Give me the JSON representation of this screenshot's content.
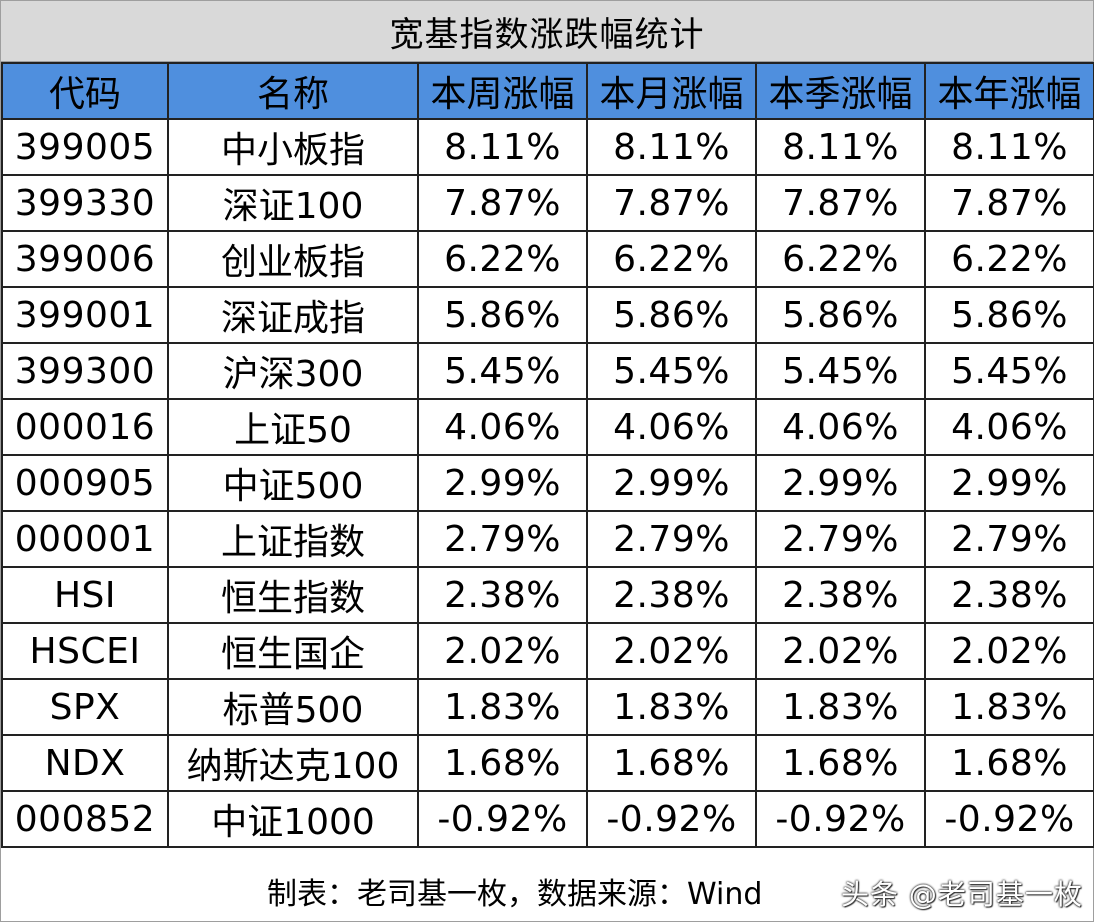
{
  "title": "宽基指数涨跌幅统计",
  "columns": [
    "代码",
    "名称",
    "本周涨幅",
    "本月涨幅",
    "本季涨幅",
    "本年涨幅"
  ],
  "rows": [
    {
      "code": "399005",
      "name": "中小板指",
      "week": "8.11%",
      "month": "8.11%",
      "quarter": "8.11%",
      "year": "8.11%",
      "trend": "up"
    },
    {
      "code": "399330",
      "name": "深证100",
      "week": "7.87%",
      "month": "7.87%",
      "quarter": "7.87%",
      "year": "7.87%",
      "trend": "up"
    },
    {
      "code": "399006",
      "name": "创业板指",
      "week": "6.22%",
      "month": "6.22%",
      "quarter": "6.22%",
      "year": "6.22%",
      "trend": "up"
    },
    {
      "code": "399001",
      "name": "深证成指",
      "week": "5.86%",
      "month": "5.86%",
      "quarter": "5.86%",
      "year": "5.86%",
      "trend": "up"
    },
    {
      "code": "399300",
      "name": "沪深300",
      "week": "5.45%",
      "month": "5.45%",
      "quarter": "5.45%",
      "year": "5.45%",
      "trend": "up"
    },
    {
      "code": "000016",
      "name": "上证50",
      "week": "4.06%",
      "month": "4.06%",
      "quarter": "4.06%",
      "year": "4.06%",
      "trend": "up"
    },
    {
      "code": "000905",
      "name": "中证500",
      "week": "2.99%",
      "month": "2.99%",
      "quarter": "2.99%",
      "year": "2.99%",
      "trend": "up"
    },
    {
      "code": "000001",
      "name": "上证指数",
      "week": "2.79%",
      "month": "2.79%",
      "quarter": "2.79%",
      "year": "2.79%",
      "trend": "up"
    },
    {
      "code": "HSI",
      "name": "恒生指数",
      "week": "2.38%",
      "month": "2.38%",
      "quarter": "2.38%",
      "year": "2.38%",
      "trend": "up"
    },
    {
      "code": "HSCEI",
      "name": "恒生国企",
      "week": "2.02%",
      "month": "2.02%",
      "quarter": "2.02%",
      "year": "2.02%",
      "trend": "up"
    },
    {
      "code": "SPX",
      "name": "标普500",
      "week": "1.83%",
      "month": "1.83%",
      "quarter": "1.83%",
      "year": "1.83%",
      "trend": "up"
    },
    {
      "code": "NDX",
      "name": "纳斯达克100",
      "week": "1.68%",
      "month": "1.68%",
      "quarter": "1.68%",
      "year": "1.68%",
      "trend": "up"
    },
    {
      "code": "000852",
      "name": "中证1000",
      "week": "-0.92%",
      "month": "-0.92%",
      "quarter": "-0.92%",
      "year": "-0.92%",
      "trend": "down"
    }
  ],
  "footer": "制表：老司基一枚，数据来源：Wind",
  "watermark": "头条 @老司基一枚",
  "colors": {
    "header_bg": "#4f8fde",
    "title_bg": "#d9d9d9",
    "up": "#e8322d",
    "down": "#1f9f3e"
  }
}
